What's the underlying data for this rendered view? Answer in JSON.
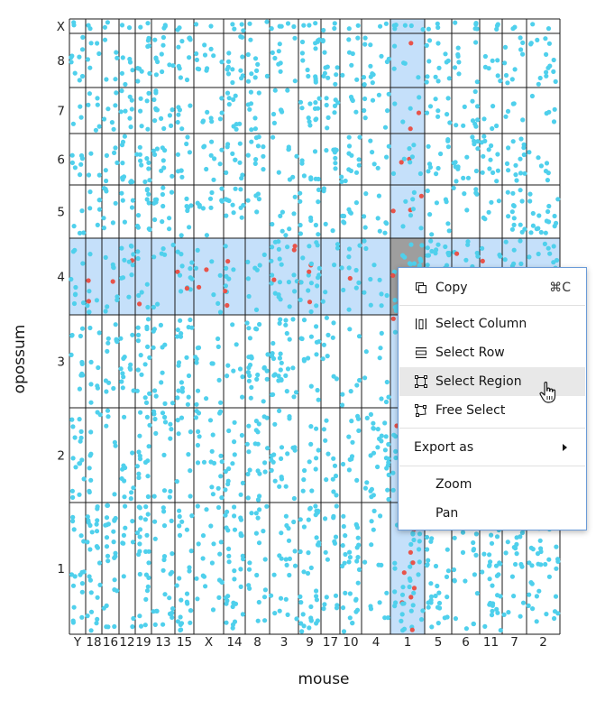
{
  "chart_data": {
    "type": "scatter",
    "xlabel": "mouse",
    "ylabel": "opossum",
    "x_categories": [
      "Y",
      "18",
      "16",
      "12",
      "19",
      "13",
      "15",
      "X",
      "14",
      "8",
      "3",
      "9",
      "17",
      "10",
      "4",
      "1",
      "5",
      "6",
      "11",
      "7",
      "2"
    ],
    "y_categories": [
      "1",
      "2",
      "3",
      "4",
      "5",
      "6",
      "7",
      "8",
      "X"
    ],
    "highlight": {
      "column": "1",
      "row": "4",
      "region": "1 x 4",
      "band_color": "#c5e0fa",
      "region_color": "#9e9e9e"
    },
    "point_color": "#4fd0ec",
    "highlighted_point_color": "#e8534a",
    "description_of_points": "jittered dots distributed across every column/row cell; dots inside the selected row and column are colored red"
  },
  "context_menu": {
    "copy": {
      "label": "Copy",
      "shortcut": "⌘C",
      "icon": "copy-icon"
    },
    "select_column": {
      "label": "Select Column",
      "icon": "select-column-icon"
    },
    "select_row": {
      "label": "Select Row",
      "icon": "select-row-icon"
    },
    "select_region": {
      "label": "Select Region",
      "icon": "select-region-icon"
    },
    "free_select": {
      "label": "Free Select",
      "icon": "free-select-icon"
    },
    "export_as": {
      "label": "Export as"
    },
    "zoom": {
      "label": "Zoom"
    },
    "pan": {
      "label": "Pan"
    }
  },
  "colors": {
    "grid": "#1a1a1a",
    "menu_border": "#6a9bd8",
    "menu_hover": "#e8e8e8"
  }
}
